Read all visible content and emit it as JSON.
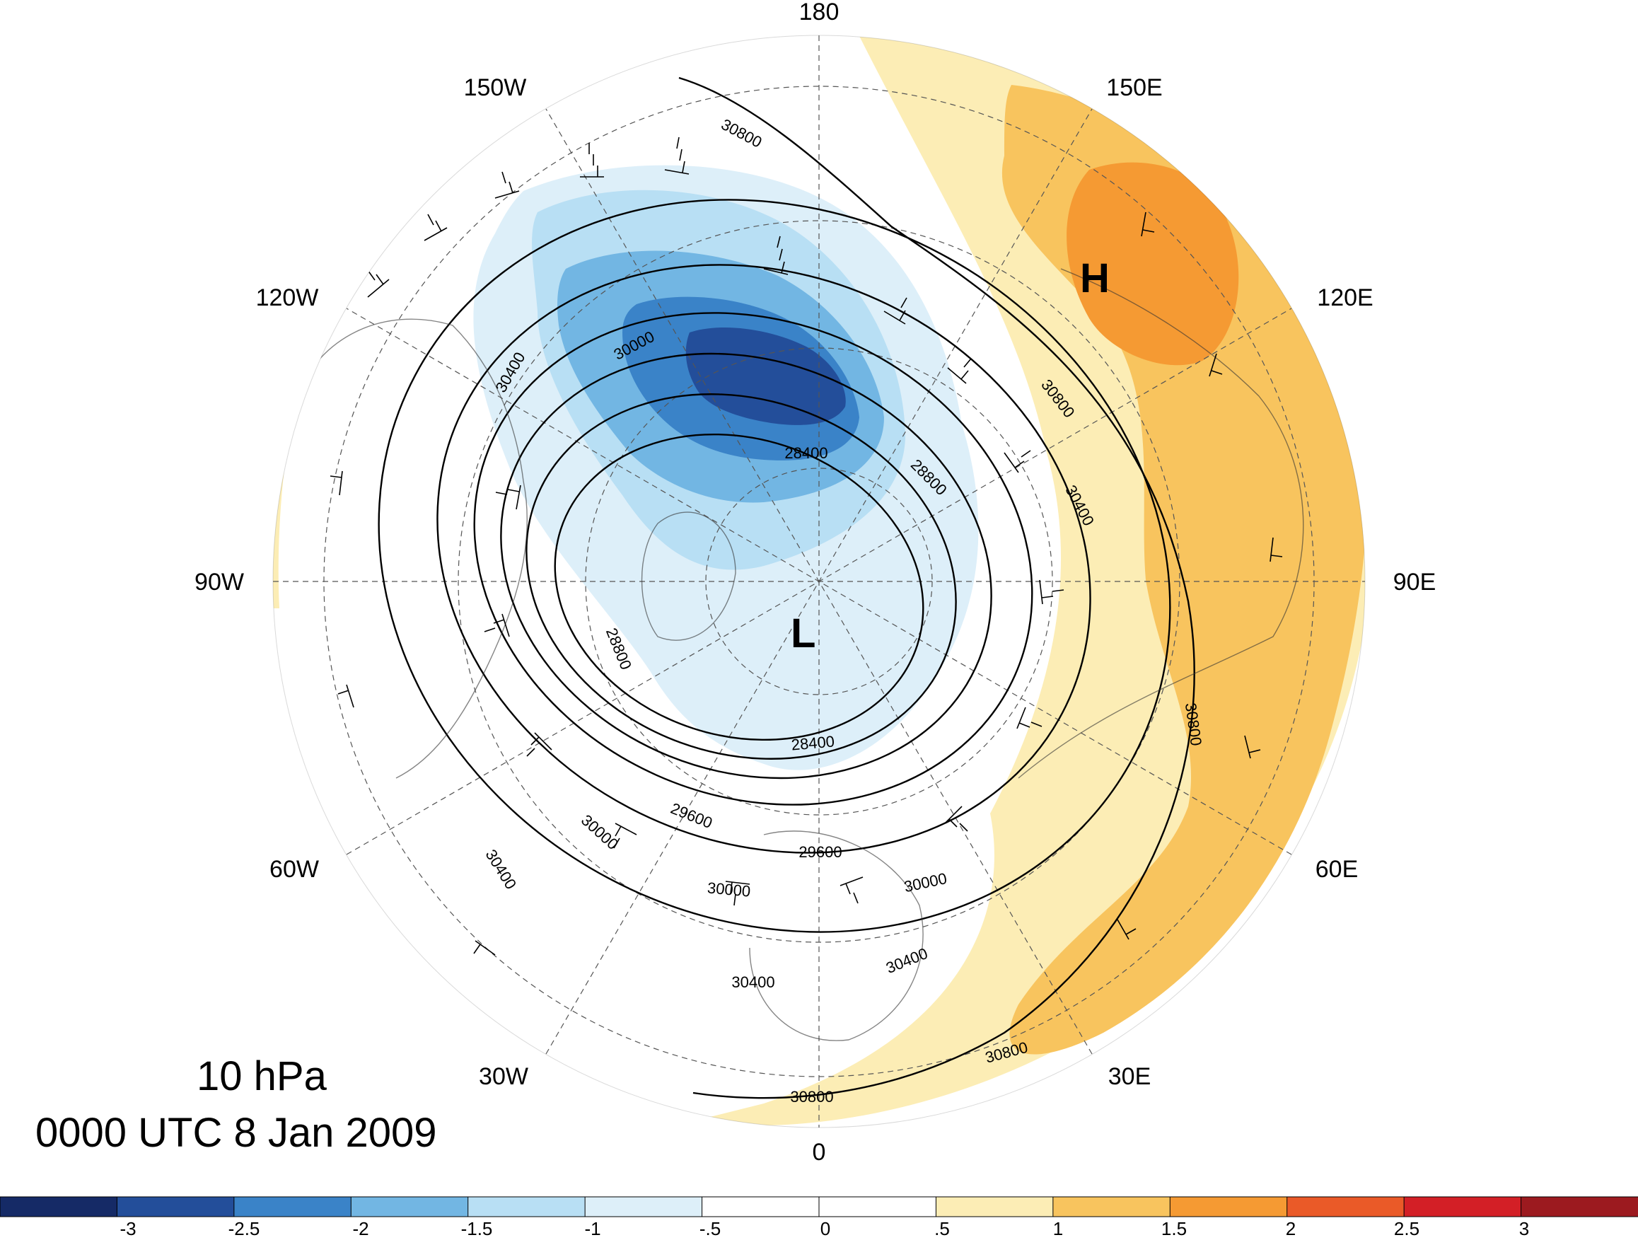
{
  "title": {
    "level": "10 hPa",
    "time": "0000 UTC 8 Jan 2009"
  },
  "longitude_labels": {
    "lon_180": "180",
    "lon_150W": "150W",
    "lon_150E": "150E",
    "lon_120W": "120W",
    "lon_120E": "120E",
    "lon_90W": "90W",
    "lon_90E": "90E",
    "lon_60W": "60W",
    "lon_60E": "60E",
    "lon_30W": "30W",
    "lon_30E": "30E",
    "lon_0": "0"
  },
  "pressure_centers": {
    "low": "L",
    "high": "H"
  },
  "contour_labels": [
    "30800",
    "30400",
    "30000",
    "28400",
    "28800",
    "30800",
    "30400",
    "28800",
    "28400",
    "29600",
    "29600",
    "30000",
    "30000",
    "30400",
    "30000",
    "30400",
    "30400",
    "30800",
    "30800",
    "30800"
  ],
  "colorbar": {
    "colors": [
      "#152a66",
      "#234e9a",
      "#3a83c8",
      "#72b6e3",
      "#b8dff4",
      "#ddeff9",
      "#ffffff",
      "#ffffff",
      "#fcedb5",
      "#f8c45e",
      "#f59a33",
      "#ea5a28",
      "#d31f26",
      "#9c1a1f"
    ],
    "tick_labels": [
      "-3",
      "-2.5",
      "-2",
      "-1.5",
      "-1",
      "-.5",
      "0",
      ".5",
      "1",
      "1.5",
      "2",
      "2.5",
      "3"
    ]
  }
}
